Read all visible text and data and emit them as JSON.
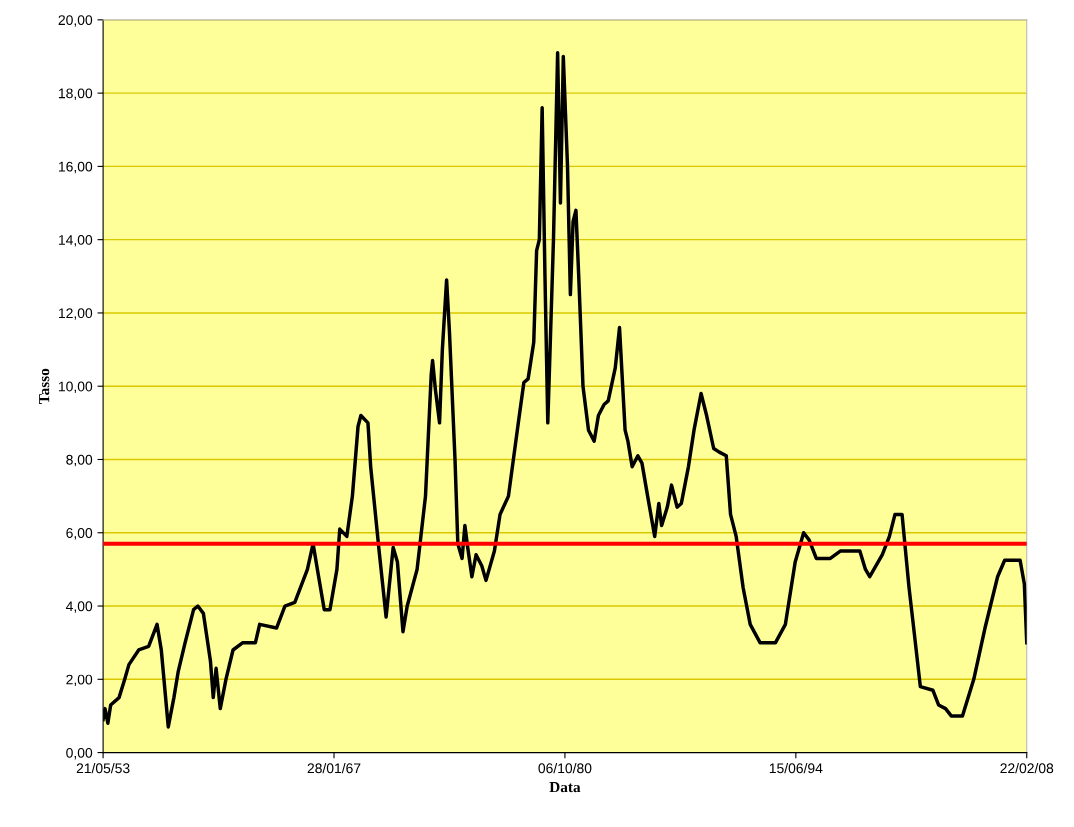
{
  "chart_data": {
    "type": "line",
    "xlabel": "Data",
    "ylabel": "Tasso",
    "xlim": [
      "1953-05-21",
      "2008-02-22"
    ],
    "xticks": [
      {
        "value": "1953-05-21",
        "label": "21/05/53"
      },
      {
        "value": "1967-01-28",
        "label": "28/01/67"
      },
      {
        "value": "1980-10-06",
        "label": "06/10/80"
      },
      {
        "value": "1994-06-15",
        "label": "15/06/94"
      },
      {
        "value": "2008-02-22",
        "label": "22/02/08"
      }
    ],
    "ylim": [
      0,
      20
    ],
    "yticks": [
      {
        "value": 0,
        "label": "0,00"
      },
      {
        "value": 2,
        "label": "2,00"
      },
      {
        "value": 4,
        "label": "4,00"
      },
      {
        "value": 6,
        "label": "6,00"
      },
      {
        "value": 8,
        "label": "8,00"
      },
      {
        "value": 10,
        "label": "10,00"
      },
      {
        "value": 12,
        "label": "12,00"
      },
      {
        "value": 14,
        "label": "14,00"
      },
      {
        "value": 16,
        "label": "16,00"
      },
      {
        "value": 18,
        "label": "18,00"
      },
      {
        "value": 20,
        "label": "20,00"
      }
    ],
    "grid": "y",
    "marker": "none",
    "line_style": "solid",
    "ref_lines": [
      {
        "axis": "y",
        "value": 5.7,
        "color": "#ff0000"
      }
    ],
    "series": [
      {
        "color": "#000000",
        "x": [
          "1953-05-21",
          "1953-07",
          "1953-09",
          "1953-11",
          "1954-05",
          "1954-09",
          "1954-12",
          "1955-07",
          "1956-02",
          "1956-08",
          "1956-11",
          "1957-04",
          "1957-08",
          "1957-11",
          "1958-04",
          "1958-10",
          "1959-01",
          "1959-05",
          "1959-10",
          "1959-12",
          "1960-02",
          "1960-05",
          "1960-09",
          "1961-02",
          "1961-09",
          "1962-06",
          "1962-09",
          "1963-09",
          "1964-03",
          "1964-10",
          "1965-07",
          "1965-11",
          "1966-03",
          "1966-07",
          "1966-11",
          "1967-04",
          "1967-06",
          "1967-11",
          "1968-03",
          "1968-07",
          "1968-09",
          "1969-02",
          "1969-04",
          "1969-10",
          "1970-03",
          "1970-08",
          "1970-11",
          "1971-03",
          "1971-06",
          "1972-01",
          "1972-07",
          "1972-11",
          "1972-12",
          "1973-02",
          "1973-05",
          "1973-07",
          "1973-10",
          "1973-12",
          "1974-04",
          "1974-06",
          "1974-09",
          "1974-11",
          "1975-01",
          "1975-04",
          "1975-07",
          "1975-11",
          "1976-02",
          "1976-08",
          "1976-12",
          "1977-06",
          "1978-01",
          "1978-05",
          "1978-08",
          "1978-12",
          "1979-02",
          "1979-04",
          "1979-06",
          "1979-08",
          "1979-10",
          "1980-02",
          "1980-05",
          "1980-07",
          "1980-09",
          "1980-12",
          "1981-02",
          "1981-04",
          "1981-06",
          "1981-08",
          "1981-11",
          "1982-03",
          "1982-07",
          "1982-10",
          "1983-02",
          "1983-05",
          "1983-10",
          "1984-01",
          "1984-05",
          "1984-07",
          "1984-10",
          "1985-02",
          "1985-05",
          "1985-09",
          "1986-02",
          "1986-05",
          "1986-07",
          "1986-11",
          "1987-02",
          "1987-06",
          "1987-09",
          "1988-02",
          "1988-06",
          "1988-11",
          "1989-03",
          "1989-08",
          "1989-12",
          "1990-05",
          "1990-08",
          "1990-12",
          "1991-05",
          "1991-10",
          "1992-05",
          "1993-04",
          "1993-11",
          "1994-06",
          "1994-12",
          "1995-04",
          "1995-09",
          "1996-07",
          "1997-02",
          "1998-04",
          "1998-08",
          "1998-11",
          "1999-08",
          "2000-01",
          "2000-05",
          "2000-10",
          "2001-03",
          "2001-06",
          "2001-11",
          "2002-08",
          "2002-12",
          "2003-05",
          "2003-09",
          "2004-05",
          "2005-01",
          "2005-09",
          "2006-06",
          "2006-11",
          "2007-10",
          "2008-01",
          "2008-02-22"
        ],
        "values": [
          0.9,
          1.2,
          0.8,
          1.3,
          1.5,
          2.0,
          2.4,
          2.8,
          2.9,
          3.5,
          2.8,
          0.7,
          1.5,
          2.2,
          3.0,
          3.9,
          4.0,
          3.8,
          2.5,
          1.5,
          2.3,
          1.2,
          2.0,
          2.8,
          3.0,
          3.0,
          3.5,
          3.4,
          4.0,
          4.1,
          5.0,
          5.7,
          4.8,
          3.9,
          3.9,
          5.0,
          6.1,
          5.9,
          7.0,
          8.9,
          9.2,
          9.0,
          7.8,
          5.5,
          3.7,
          5.6,
          5.2,
          3.3,
          4.0,
          5.0,
          7.0,
          10.3,
          10.7,
          9.9,
          9.0,
          11.0,
          12.9,
          11.5,
          8.0,
          5.7,
          5.3,
          6.2,
          5.6,
          4.8,
          5.4,
          5.1,
          4.7,
          5.5,
          6.5,
          7.0,
          9.0,
          10.1,
          10.2,
          11.2,
          13.7,
          14.0,
          17.6,
          13.0,
          9.0,
          14.0,
          19.1,
          15.0,
          19.0,
          16.0,
          12.5,
          14.5,
          14.8,
          13.0,
          10.0,
          8.8,
          8.5,
          9.2,
          9.5,
          9.6,
          10.5,
          11.6,
          8.8,
          8.5,
          7.8,
          8.1,
          7.9,
          7.0,
          5.9,
          6.8,
          6.2,
          6.7,
          7.3,
          6.7,
          6.8,
          7.8,
          8.8,
          9.8,
          9.2,
          8.3,
          8.2,
          8.1,
          6.5,
          5.9,
          4.5,
          3.5,
          3.0,
          3.0,
          3.5,
          5.2,
          6.0,
          5.8,
          5.3,
          5.3,
          5.5,
          5.5,
          5.0,
          4.8,
          5.4,
          5.9,
          6.5,
          6.5,
          4.5,
          3.5,
          1.8,
          1.7,
          1.3,
          1.2,
          1.0,
          1.0,
          2.0,
          3.4,
          4.8,
          5.25,
          5.25,
          4.6,
          3.0
        ]
      }
    ]
  }
}
